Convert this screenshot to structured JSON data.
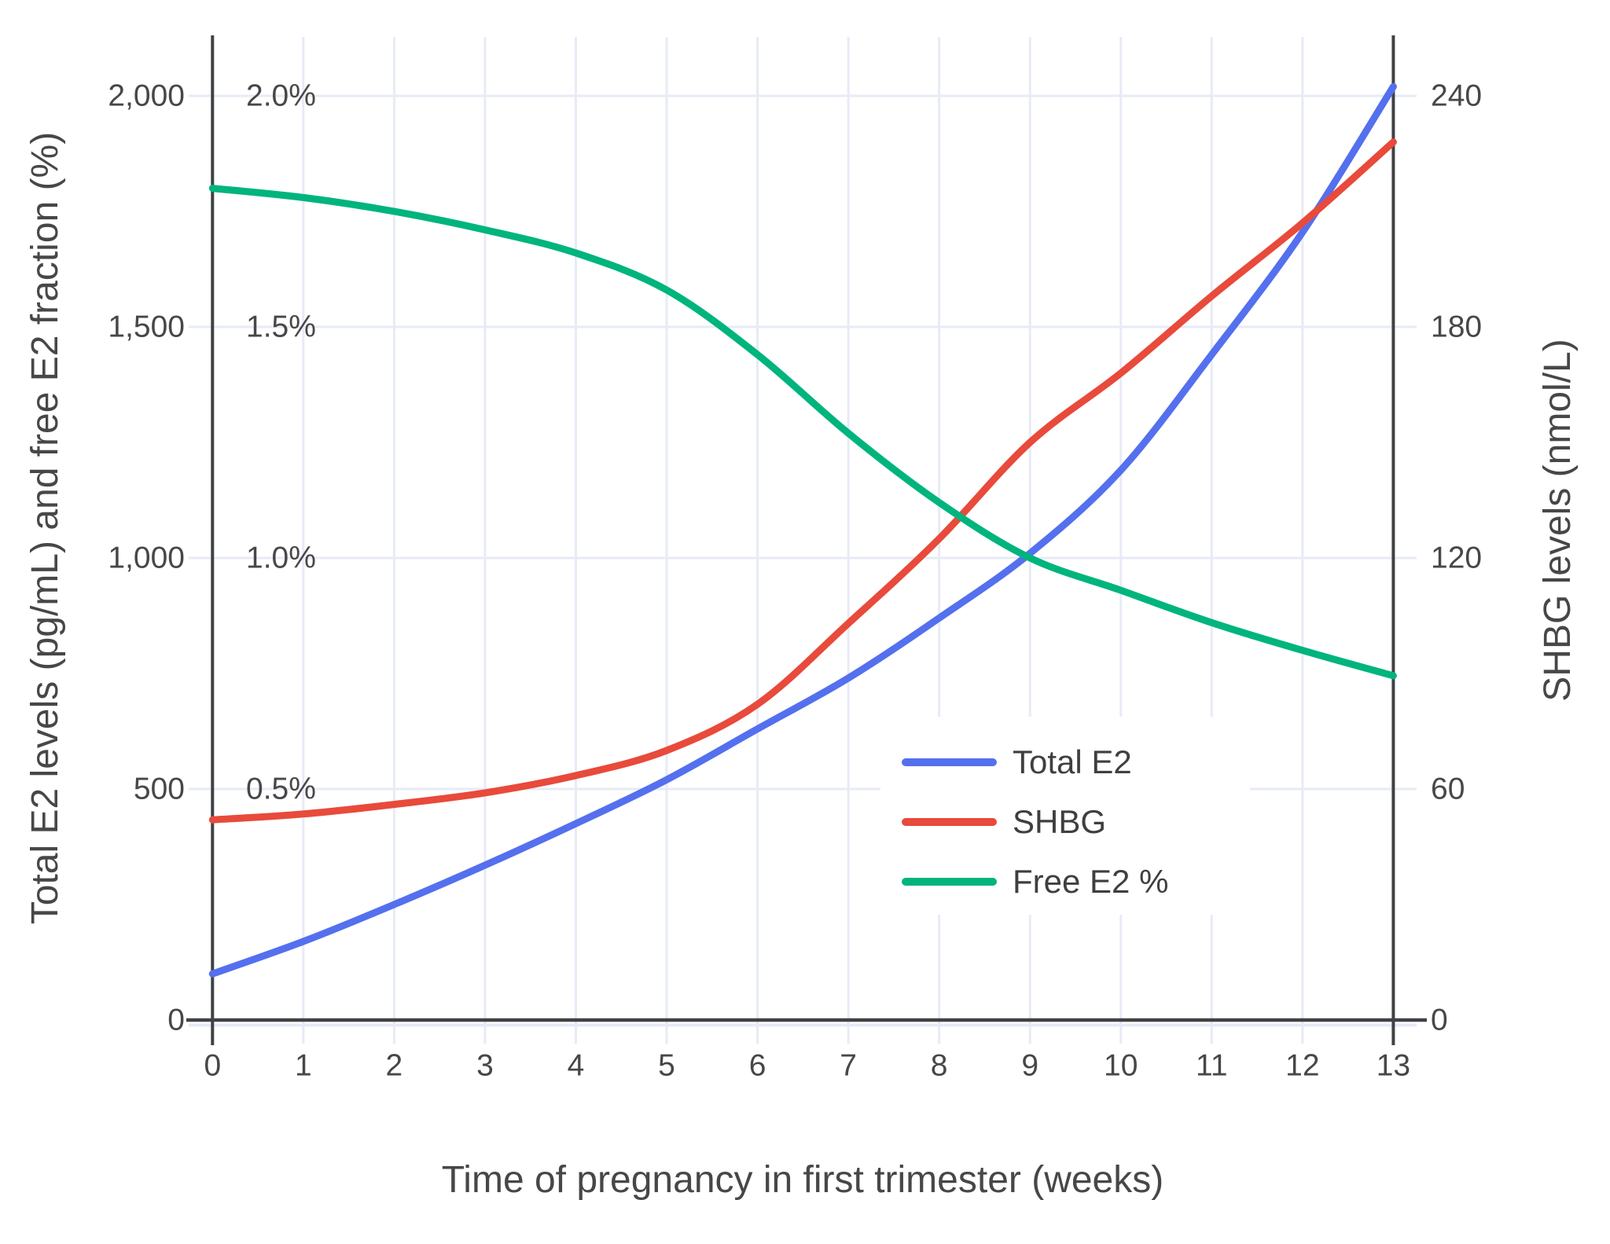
{
  "chart_data": {
    "type": "line",
    "title": "",
    "xlabel": "Time of pregnancy in first trimester (weeks)",
    "x": [
      0,
      1,
      2,
      3,
      4,
      5,
      6,
      7,
      8,
      9,
      10,
      11,
      12,
      13
    ],
    "x_tick_labels": [
      "0",
      "1",
      "2",
      "3",
      "4",
      "5",
      "6",
      "7",
      "8",
      "9",
      "10",
      "11",
      "12",
      "13"
    ],
    "xlim": [
      0,
      13
    ],
    "grid": true,
    "left_axis": {
      "title": "Total E2 levels (pg/mL) and free E2 fraction (%)",
      "tick_values": [
        0,
        500,
        1000,
        1500,
        2000
      ],
      "tick_labels": [
        "0",
        "500",
        "1,000",
        "1,500",
        "2,000"
      ],
      "percent_tick_values": [
        500,
        1000,
        1500,
        2000
      ],
      "percent_tick_labels": [
        "0.5%",
        "1.0%",
        "1.5%",
        "2.0%"
      ],
      "range": [
        0,
        2150
      ]
    },
    "right_axis": {
      "title": "SHBG levels (nmol/L)",
      "tick_values": [
        0,
        60,
        120,
        180,
        240
      ],
      "tick_labels": [
        "0",
        "60",
        "120",
        "180",
        "240"
      ],
      "range": [
        0,
        258
      ]
    },
    "series": [
      {
        "name": "Total E2",
        "axis": "left",
        "unit": "pg/mL",
        "color": "#5470EE",
        "values": [
          100,
          170,
          250,
          335,
          425,
          520,
          630,
          740,
          870,
          1010,
          1190,
          1440,
          1705,
          2020
        ]
      },
      {
        "name": "SHBG",
        "axis": "right",
        "unit": "nmol/L",
        "color": "#E84A3B",
        "values": [
          52,
          53.5,
          56,
          59,
          63.5,
          70,
          82,
          103,
          125,
          150,
          168,
          188,
          207,
          228
        ]
      },
      {
        "name": "Free E2 %",
        "axis": "percent",
        "unit": "%",
        "values_note": "plotted against left axis where 1.0% = 1000",
        "color": "#00B47D",
        "values": [
          1.8,
          1.78,
          1.75,
          1.71,
          1.66,
          1.58,
          1.44,
          1.27,
          1.12,
          1.0,
          0.93,
          0.86,
          0.8,
          0.745
        ]
      }
    ],
    "legend": {
      "position": "inside-bottom-right",
      "entries": [
        "Total E2",
        "SHBG",
        "Free E2 %"
      ]
    },
    "colors": {
      "grid": "#E7EBF6",
      "axis": "#3F4245",
      "text": "#474747",
      "background": "#FFFFFF"
    }
  }
}
